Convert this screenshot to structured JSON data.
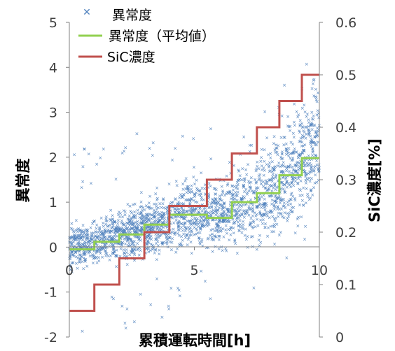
{
  "chart_data": {
    "type": "line",
    "xlabel": "累積運転時間[h]",
    "ylabel": "異常度",
    "y2label": "SiC濃度[%]",
    "xlim": [
      0,
      10
    ],
    "ylim": [
      -2,
      5
    ],
    "y2lim": [
      0,
      0.6
    ],
    "x_ticks": [
      "0",
      "5",
      "10"
    ],
    "y_ticks": [
      "-2",
      "-1",
      "0",
      "1",
      "2",
      "3",
      "4",
      "5"
    ],
    "y2_ticks": [
      "0",
      "0.1",
      "0.2",
      "0.3",
      "0.4",
      "0.5",
      "0.6"
    ],
    "grid": false,
    "legend_position": "top-left",
    "legend": [
      {
        "label": "異常度",
        "type": "scatter",
        "color": "#4f81bd"
      },
      {
        "label": "異常度（平均値）",
        "type": "line",
        "color": "#92d050"
      },
      {
        "label": "SiC濃度",
        "type": "line",
        "color": "#c0504d"
      }
    ],
    "series": [
      {
        "name": "異常度（平均値）",
        "axis": "left",
        "step": true,
        "color": "#92d050",
        "x": [
          0,
          1.0,
          1.0,
          2.0,
          2.0,
          3.0,
          3.0,
          4.0,
          4.0,
          5.5,
          5.5,
          6.5,
          6.5,
          7.5,
          7.5,
          8.4,
          8.4,
          9.3,
          9.3,
          10.0
        ],
        "y": [
          -0.05,
          -0.05,
          0.12,
          0.12,
          0.28,
          0.28,
          0.5,
          0.5,
          0.72,
          0.72,
          0.65,
          0.65,
          1.0,
          1.0,
          1.2,
          1.2,
          1.6,
          1.6,
          1.98,
          1.98
        ]
      },
      {
        "name": "SiC濃度",
        "axis": "right",
        "step": true,
        "color": "#c0504d",
        "x": [
          0,
          1.0,
          1.0,
          2.0,
          2.0,
          3.0,
          3.0,
          4.0,
          4.0,
          5.5,
          5.5,
          6.5,
          6.5,
          7.5,
          7.5,
          8.4,
          8.4,
          9.3,
          9.3,
          10.0
        ],
        "y": [
          0.05,
          0.05,
          0.1,
          0.1,
          0.15,
          0.15,
          0.2,
          0.2,
          0.25,
          0.25,
          0.3,
          0.3,
          0.35,
          0.35,
          0.4,
          0.4,
          0.45,
          0.45,
          0.5,
          0.5
        ]
      },
      {
        "name": "異常度",
        "axis": "left",
        "type": "scatter",
        "color": "#4f81bd",
        "band": {
          "x": [
            0,
            1,
            2,
            3,
            4,
            5,
            6,
            7,
            8,
            9,
            10
          ],
          "center": [
            0.0,
            0.1,
            0.25,
            0.45,
            0.6,
            0.75,
            0.75,
            0.95,
            1.3,
            1.8,
            2.4
          ],
          "spread": [
            0.5,
            0.5,
            0.55,
            0.6,
            0.7,
            0.8,
            0.8,
            0.9,
            1.1,
            1.3,
            1.4
          ]
        }
      }
    ]
  }
}
